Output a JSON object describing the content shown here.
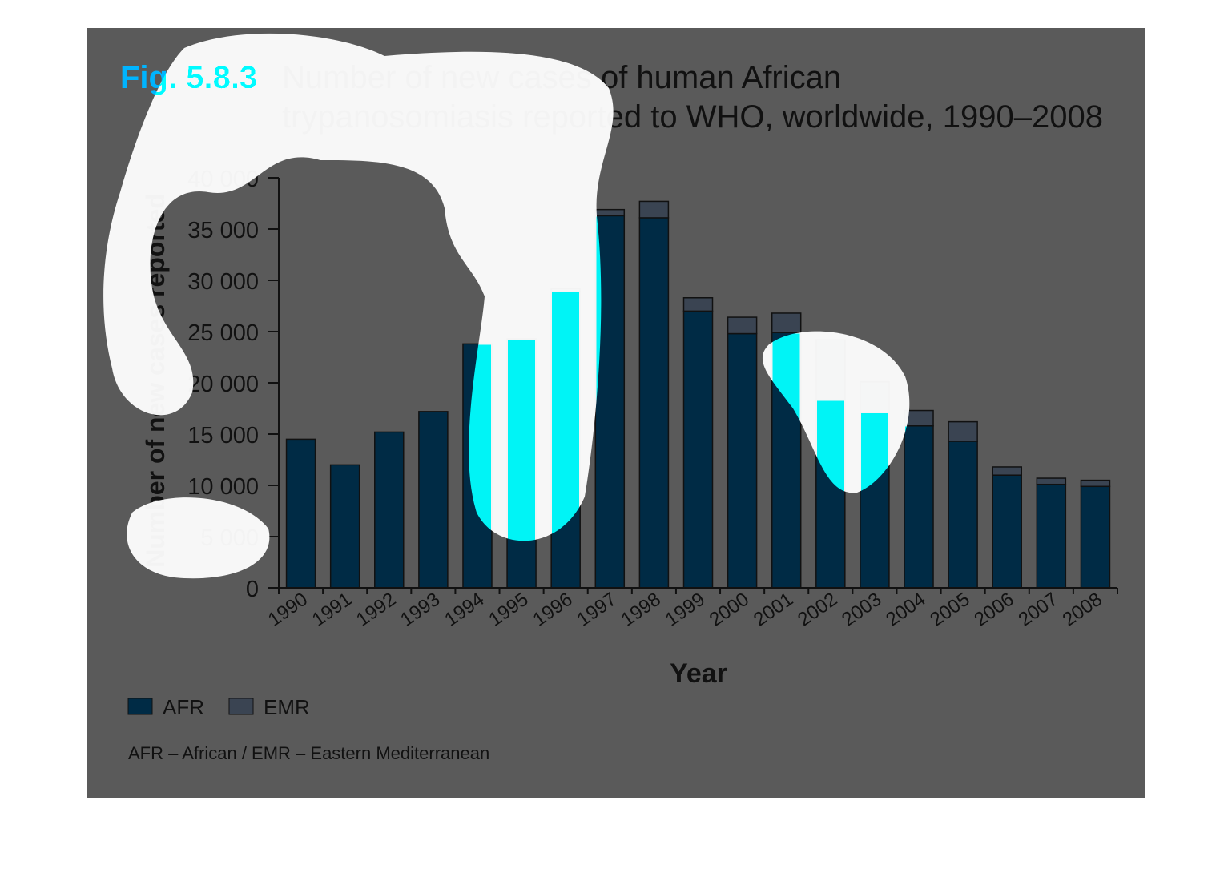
{
  "figure": {
    "number": "Fig. 5.8.3",
    "title_line1": "Number of new cases of human African",
    "title_line2": "trypanosomiasis reported to WHO, worldwide, 1990–2008",
    "footnote": "AFR – African / EMR – Eastern Mediterranean"
  },
  "colors": {
    "AFR": "#002b45",
    "EMR": "#3a4452",
    "background": "#5a5a5a",
    "accent": "#00b4ff"
  },
  "chart_data": {
    "type": "bar",
    "stacked": true,
    "title": "Number of new cases of human African trypanosomiasis reported to WHO, worldwide, 1990–2008",
    "xlabel": "Year",
    "ylabel": "Number of new cases reported",
    "ylim": [
      0,
      40000
    ],
    "yticks": [
      0,
      5000,
      10000,
      15000,
      20000,
      25000,
      30000,
      35000,
      40000
    ],
    "ytick_labels": [
      "0",
      "5 000",
      "10 000",
      "15 000",
      "20 000",
      "25 000",
      "30 000",
      "35 000",
      "40 000"
    ],
    "categories": [
      "1990",
      "1991",
      "1992",
      "1993",
      "1994",
      "1995",
      "1996",
      "1997",
      "1998",
      "1999",
      "2000",
      "2001",
      "2002",
      "2003",
      "2004",
      "2005",
      "2006",
      "2007",
      "2008"
    ],
    "series": [
      {
        "name": "AFR",
        "values": [
          14500,
          12000,
          15200,
          17200,
          23800,
          24300,
          28900,
          36300,
          36100,
          27000,
          24800,
          24900,
          18300,
          17100,
          15800,
          14300,
          11000,
          10100,
          9900
        ]
      },
      {
        "name": "EMR",
        "values": [
          0,
          0,
          0,
          0,
          0,
          0,
          300,
          600,
          1600,
          1300,
          1600,
          1900,
          5900,
          3000,
          1500,
          1900,
          800,
          600,
          600
        ]
      }
    ],
    "legend": {
      "placement": "bottom-left",
      "entries": [
        "AFR",
        "EMR"
      ]
    },
    "grid": false
  }
}
